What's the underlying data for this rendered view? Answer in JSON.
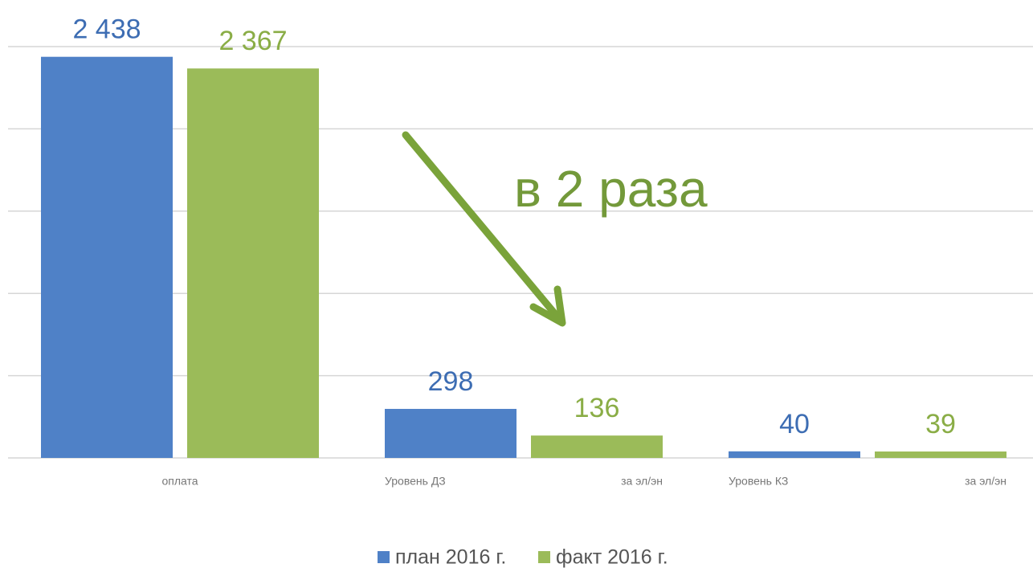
{
  "chart_data": {
    "type": "bar",
    "categories": [
      [
        "оплата"
      ],
      [
        "Уровень ДЗ",
        "за эл/эн"
      ],
      [
        "Уровень КЗ",
        "за эл/эн"
      ]
    ],
    "series": [
      {
        "name": "план 2016 г.",
        "color": "#4f81c7",
        "label_color": "#3d6db3",
        "values": [
          2438,
          298,
          40
        ],
        "value_labels": [
          "2 438",
          "298",
          "40"
        ]
      },
      {
        "name": "факт 2016 г.",
        "color": "#9bbb59",
        "label_color": "#8aad46",
        "values": [
          2367,
          136,
          39
        ],
        "value_labels": [
          "2 367",
          "136",
          "39"
        ]
      }
    ],
    "ylim": [
      0,
      2500
    ],
    "yticks": [
      0,
      500,
      1000,
      1500,
      2000,
      2500
    ],
    "grid": true,
    "annotation": "в 2 раза",
    "legend": "bottom"
  }
}
